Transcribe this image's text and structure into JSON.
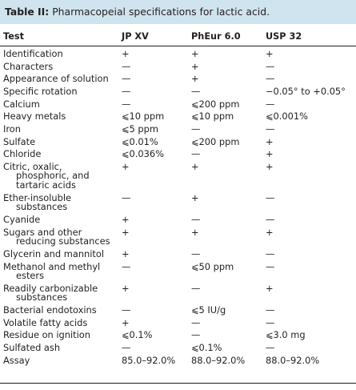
{
  "table": {
    "title_label": "Table II:",
    "title_text": "Pharmacopeial specifications for lactic acid.",
    "headers": [
      "Test",
      "JP XV",
      "PhEur 6.0",
      "USP 32"
    ],
    "rows": [
      {
        "test": [
          "Identification"
        ],
        "jp": [
          "+"
        ],
        "pheur": [
          "+"
        ],
        "usp": [
          "+"
        ]
      },
      {
        "test": [
          "Characters"
        ],
        "jp": [
          "—"
        ],
        "pheur": [
          "+"
        ],
        "usp": [
          "—"
        ]
      },
      {
        "test": [
          "Appearance of solution"
        ],
        "jp": [
          "—"
        ],
        "pheur": [
          "+"
        ],
        "usp": [
          "—"
        ]
      },
      {
        "test": [
          "Specific rotation"
        ],
        "jp": [
          "—"
        ],
        "pheur": [
          "—"
        ],
        "usp": [
          "−0.05° to +0.05°"
        ]
      },
      {
        "test": [
          "Calcium"
        ],
        "jp": [
          "—"
        ],
        "pheur": [
          "⩽200 ppm"
        ],
        "usp": [
          "—"
        ]
      },
      {
        "test": [
          "Heavy metals"
        ],
        "jp": [
          "⩽10 ppm"
        ],
        "pheur": [
          "⩽10 ppm"
        ],
        "usp": [
          "⩽0.001%"
        ]
      },
      {
        "test": [
          "Iron"
        ],
        "jp": [
          "⩽5 ppm"
        ],
        "pheur": [
          "—"
        ],
        "usp": [
          "—"
        ]
      },
      {
        "test": [
          "Sulfate"
        ],
        "jp": [
          "⩽0.01%"
        ],
        "pheur": [
          "⩽200 ppm"
        ],
        "usp": [
          "+"
        ]
      },
      {
        "test": [
          "Chloride"
        ],
        "jp": [
          "⩽0.036%"
        ],
        "pheur": [
          "—"
        ],
        "usp": [
          "+"
        ]
      },
      {
        "test": [
          "Citric, oxalic,",
          "phosphoric, and",
          "tartaric acids"
        ],
        "jp": [
          "+"
        ],
        "pheur": [
          "+"
        ],
        "usp": [
          "+"
        ]
      },
      {
        "test": [
          "Ether-insoluble",
          "substances"
        ],
        "jp": [
          "—"
        ],
        "pheur": [
          "+"
        ],
        "usp": [
          "—"
        ]
      },
      {
        "test": [
          "Cyanide"
        ],
        "jp": [
          "+"
        ],
        "pheur": [
          "—"
        ],
        "usp": [
          "—"
        ]
      },
      {
        "test": [
          "Sugars and other",
          "reducing substances"
        ],
        "jp": [
          "+"
        ],
        "pheur": [
          "+"
        ],
        "usp": [
          "+"
        ]
      },
      {
        "test": [
          "Glycerin and mannitol"
        ],
        "jp": [
          "+"
        ],
        "pheur": [
          "—"
        ],
        "usp": [
          "—"
        ]
      },
      {
        "test": [
          "Methanol and methyl",
          "esters"
        ],
        "jp": [
          "—"
        ],
        "pheur": [
          "⩽50 ppm"
        ],
        "usp": [
          "—"
        ]
      },
      {
        "test": [
          "Readily carbonizable",
          "substances"
        ],
        "jp": [
          "+"
        ],
        "pheur": [
          "—"
        ],
        "usp": [
          "+"
        ]
      },
      {
        "test": [
          "Bacterial endotoxins"
        ],
        "jp": [
          "—"
        ],
        "pheur": [
          "⩽5 IU/g"
        ],
        "usp": [
          "—"
        ]
      },
      {
        "test": [
          "Volatile fatty acids"
        ],
        "jp": [
          "+"
        ],
        "pheur": [
          "—"
        ],
        "usp": [
          "—"
        ]
      },
      {
        "test": [
          "Residue on ignition"
        ],
        "jp": [
          "⩽0.1%"
        ],
        "pheur": [
          "—"
        ],
        "usp": [
          "⩽3.0 mg"
        ]
      },
      {
        "test": [
          "Sulfated ash"
        ],
        "jp": [
          "—"
        ],
        "pheur": [
          "⩽0.1%"
        ],
        "usp": [
          "—"
        ]
      },
      {
        "test": [
          "Assay"
        ],
        "jp": [
          "85.0–92.0%"
        ],
        "pheur": [
          "88.0–92.0%"
        ],
        "usp": [
          "88.0–92.0%"
        ]
      }
    ]
  }
}
